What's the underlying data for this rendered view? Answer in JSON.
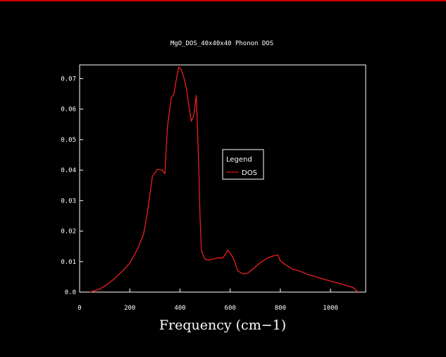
{
  "colors": {
    "background": "#000000",
    "axes": "#ffffff",
    "series": "#ff2020",
    "top_border": "#cc0000"
  },
  "chart_data": {
    "type": "line",
    "title": "MgO_DOS_40x40x40 Phonon DOS",
    "xlabel": "Frequency (cm−1)",
    "ylabel": "",
    "xlim": [
      0,
      1140
    ],
    "ylim": [
      0,
      0.0745
    ],
    "xticks": [
      0,
      200,
      400,
      600,
      800,
      1000
    ],
    "xtick_labels": [
      "0",
      "200",
      "400",
      "600",
      "800",
      "1000"
    ],
    "yticks": [
      0,
      0.01,
      0.02,
      0.03,
      0.04,
      0.05,
      0.06,
      0.07
    ],
    "ytick_labels": [
      "0.0",
      "0.01",
      "0.02",
      "0.03",
      "0.04",
      "0.05",
      "0.06",
      "0.07"
    ],
    "grid": false,
    "legend": {
      "title": "Legend",
      "placement": "center-right"
    },
    "series": [
      {
        "name": "DOS",
        "color": "#ff2020",
        "x": [
          42,
          80,
          110,
          140,
          170,
          200,
          230,
          255,
          270,
          290,
          310,
          330,
          340,
          350,
          365,
          375,
          385,
          395,
          405,
          415,
          425,
          435,
          445,
          455,
          465,
          470,
          475,
          480,
          485,
          490,
          500,
          510,
          530,
          550,
          570,
          580,
          590,
          600,
          610,
          620,
          630,
          650,
          670,
          690,
          710,
          730,
          750,
          770,
          790,
          800,
          820,
          850,
          880,
          910,
          950,
          1000,
          1050,
          1090,
          1110
        ],
        "y": [
          0.0,
          0.001,
          0.0025,
          0.0045,
          0.0068,
          0.0095,
          0.014,
          0.019,
          0.026,
          0.038,
          0.0402,
          0.04,
          0.0388,
          0.054,
          0.0638,
          0.0648,
          0.0695,
          0.0738,
          0.073,
          0.0705,
          0.067,
          0.0615,
          0.056,
          0.058,
          0.0645,
          0.053,
          0.04,
          0.025,
          0.014,
          0.0125,
          0.0108,
          0.0105,
          0.0108,
          0.0112,
          0.0112,
          0.0122,
          0.0138,
          0.0128,
          0.0115,
          0.0095,
          0.007,
          0.006,
          0.0062,
          0.0075,
          0.009,
          0.0102,
          0.0112,
          0.0118,
          0.0122,
          0.0102,
          0.009,
          0.0075,
          0.0068,
          0.0058,
          0.0048,
          0.0036,
          0.0025,
          0.0015,
          0.0
        ]
      }
    ]
  }
}
